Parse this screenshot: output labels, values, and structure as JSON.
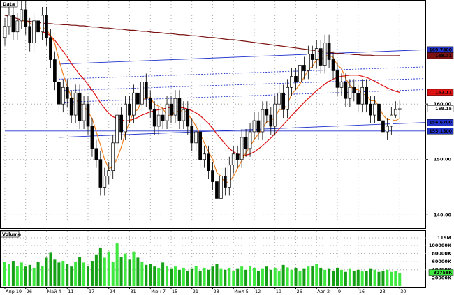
{
  "chart_data": {
    "type": "candlestick",
    "title": "Data",
    "volume_title": "Volume",
    "categories": [
      "Апр 19",
      null,
      null,
      null,
      null,
      "26",
      null,
      null,
      null,
      null,
      "Май 4",
      null,
      null,
      null,
      null,
      "11",
      null,
      null,
      null,
      null,
      "17",
      null,
      null,
      null,
      null,
      "24",
      null,
      null,
      null,
      null,
      "31",
      null,
      null,
      null,
      null,
      "Июн 7",
      null,
      null,
      null,
      null,
      "15",
      null,
      null,
      null,
      null,
      "21",
      null,
      null,
      null,
      null,
      "28",
      null,
      null,
      null,
      null,
      "Июл 5",
      null,
      null,
      null,
      null,
      "12",
      null,
      null,
      null,
      null,
      "19",
      null,
      null,
      null,
      null,
      "26",
      null,
      null,
      null,
      null,
      "Авг 2",
      null,
      null,
      null,
      null,
      "9",
      null,
      null,
      null,
      null,
      "16",
      null,
      null,
      null,
      null,
      "23",
      null,
      null,
      null,
      null,
      "30"
    ],
    "open": [
      172,
      174,
      176,
      173,
      175,
      177,
      174,
      171,
      175,
      173,
      176,
      172,
      168,
      164,
      160,
      163,
      161,
      158,
      162,
      157,
      160,
      156,
      152,
      150,
      145,
      147,
      148,
      153,
      158,
      155,
      160,
      158,
      162,
      160,
      164,
      161,
      159,
      156,
      158,
      157,
      160,
      158,
      161,
      157,
      159,
      156,
      153,
      155,
      150,
      151,
      148,
      146,
      143,
      147,
      145,
      149,
      151,
      150,
      154,
      152,
      155,
      157,
      155,
      159,
      158,
      156,
      160,
      162,
      159,
      163,
      165,
      164,
      167,
      166,
      169,
      168,
      170,
      167,
      171,
      168,
      166,
      163,
      164,
      161,
      163,
      162,
      160,
      163,
      160,
      158,
      160,
      157,
      155,
      156,
      158,
      159
    ],
    "high": [
      175.5,
      177.5,
      177.5,
      176.5,
      178.5,
      178.5,
      175.5,
      176.5,
      176.5,
      177.5,
      177.5,
      173.5,
      169.5,
      165.5,
      164.5,
      164.5,
      162.5,
      163.5,
      163.5,
      161.5,
      161.5,
      157.5,
      153.5,
      151.5,
      148.5,
      149.5,
      154.5,
      159.5,
      159.5,
      161.5,
      161.5,
      163.5,
      163.5,
      165.5,
      165.5,
      162.5,
      160.5,
      159.5,
      159.5,
      161.5,
      161.5,
      162.5,
      162.5,
      160.5,
      160.5,
      157.5,
      156.5,
      156.5,
      152.5,
      152.5,
      149.5,
      147.5,
      148.5,
      148.5,
      150.5,
      152.5,
      152.5,
      155.5,
      155.5,
      156.5,
      158.5,
      158.5,
      160.5,
      160.5,
      159.5,
      161.5,
      163.5,
      163.5,
      164.5,
      166.5,
      166.5,
      168.5,
      168.5,
      170.5,
      170.5,
      171.5,
      171.5,
      172.5,
      172.5,
      169.5,
      167.5,
      165.5,
      165.5,
      164.5,
      164.5,
      163.5,
      164.5,
      164.5,
      161.5,
      161.5,
      161.5,
      158.5,
      157.5,
      159.5,
      160.5,
      160.65
    ],
    "low": [
      170.5,
      172.5,
      171.5,
      171.5,
      173.5,
      172.5,
      169.5,
      169.5,
      171.5,
      171.5,
      170.5,
      166.5,
      162.5,
      158.5,
      158.5,
      159.5,
      156.5,
      156.5,
      155.5,
      155.5,
      154.5,
      150.5,
      148.5,
      143.5,
      143.5,
      145.5,
      146.5,
      151.5,
      153.5,
      153.5,
      156.5,
      156.5,
      158.5,
      158.5,
      159.5,
      157.5,
      154.5,
      154.5,
      155.5,
      155.5,
      156.5,
      156.5,
      155.5,
      155.5,
      154.5,
      151.5,
      151.5,
      148.5,
      148.5,
      146.5,
      144.5,
      141.5,
      141.5,
      143.5,
      143.5,
      147.5,
      148.5,
      148.5,
      150.5,
      150.5,
      153.5,
      153.5,
      153.5,
      156.5,
      154.5,
      154.5,
      158.5,
      157.5,
      157.5,
      161.5,
      162.5,
      162.5,
      164.5,
      164.5,
      166.5,
      166.5,
      165.5,
      165.5,
      166.5,
      164.5,
      161.5,
      161.5,
      159.5,
      159.5,
      160.5,
      158.5,
      158.5,
      158.5,
      156.5,
      156.5,
      155.5,
      153.5,
      153.5,
      154.5,
      157.5,
      157.5
    ],
    "close": [
      174,
      176,
      173,
      175,
      177,
      174,
      171,
      175,
      173,
      176,
      172,
      168,
      164,
      160,
      163,
      161,
      158,
      162,
      157,
      160,
      156,
      152,
      150,
      145,
      147,
      148,
      153,
      158,
      155,
      160,
      158,
      162,
      160,
      164,
      161,
      159,
      156,
      158,
      157,
      160,
      158,
      161,
      157,
      159,
      156,
      153,
      155,
      150,
      151,
      148,
      146,
      143,
      147,
      145,
      149,
      151,
      150,
      154,
      152,
      155,
      157,
      155,
      159,
      158,
      156,
      160,
      162,
      159,
      163,
      165,
      164,
      167,
      166,
      169,
      168,
      170,
      167,
      171,
      168,
      166,
      163,
      164,
      161,
      163,
      162,
      160,
      163,
      160,
      158,
      160,
      157,
      155,
      156,
      158,
      159,
      159.15
    ],
    "up_color": "#ffffff",
    "down_color": "#000000",
    "ylim": [
      137.9,
      178.5
    ],
    "yticks": [
      {
        "value": 160,
        "label": "160.00"
      },
      {
        "value": 150,
        "label": "150.00"
      },
      {
        "value": 140,
        "label": "140.00"
      }
    ],
    "grid": true,
    "series": [
      {
        "color": "#7a1010",
        "values": [
          176,
          175.8,
          175.6,
          175.4,
          175.2,
          175,
          174.9,
          174.8,
          174.7,
          174.6,
          174.5,
          174.5,
          174.4,
          174.4,
          174.3,
          174.3,
          174.2,
          174.2,
          174.1,
          174.1,
          174,
          173.9,
          173.9,
          173.8,
          173.7,
          173.7,
          173.6,
          173.5,
          173.5,
          173.4,
          173.3,
          173.3,
          173.2,
          173.1,
          173.1,
          173,
          172.9,
          172.9,
          172.8,
          172.7,
          172.7,
          172.6,
          172.5,
          172.5,
          172.4,
          172.3,
          172.3,
          172.2,
          172.1,
          172,
          172,
          171.9,
          171.8,
          171.7,
          171.6,
          171.6,
          171.5,
          171.4,
          171.3,
          171.2,
          171.1,
          171,
          170.9,
          170.8,
          170.7,
          170.6,
          170.5,
          170.4,
          170.3,
          170.2,
          170.1,
          170,
          169.9,
          169.8,
          169.7,
          169.6,
          169.5,
          169.4,
          169.3,
          169.2,
          169.1,
          169.1,
          169,
          169,
          168.9,
          168.9,
          168.8,
          168.8,
          168.8,
          168.7,
          168.7,
          168.7,
          168.7,
          168.7,
          168.7,
          168.71
        ]
      },
      {
        "color": "#dd1111",
        "values": [
          null,
          null,
          null,
          null,
          null,
          null,
          null,
          null,
          null,
          173,
          172.8,
          172.3,
          171.5,
          170.5,
          169.5,
          168.5,
          167.3,
          166.3,
          165.3,
          164.5,
          163.5,
          162.5,
          161.4,
          160.2,
          159.2,
          158.3,
          157.7,
          157.4,
          157.1,
          157,
          157,
          157.3,
          157.6,
          158,
          158.3,
          158.6,
          158.8,
          159,
          159.1,
          159.3,
          159.4,
          159.5,
          159.4,
          159.3,
          159.1,
          158.8,
          158.4,
          157.9,
          157.2,
          156.5,
          155.6,
          154.6,
          153.7,
          152.8,
          152,
          151.4,
          151,
          150.8,
          150.8,
          151,
          151.4,
          151.9,
          152.5,
          153.2,
          153.9,
          154.7,
          155.5,
          156.3,
          157.1,
          157.9,
          158.7,
          159.5,
          160.3,
          161,
          161.7,
          162.4,
          163,
          163.6,
          164.1,
          164.5,
          164.8,
          165,
          165.1,
          165.2,
          165.2,
          165.2,
          165,
          164.8,
          164.5,
          164.1,
          163.7,
          163.3,
          162.9,
          162.6,
          162.3,
          162.11
        ]
      },
      {
        "color": "#f08020",
        "values": [
          null,
          null,
          null,
          null,
          175,
          175,
          174.6,
          174.2,
          173.6,
          173.8,
          173.4,
          172.4,
          171,
          168,
          165.4,
          163.2,
          161.2,
          160.8,
          160.2,
          159.6,
          158.6,
          157.4,
          155,
          152.6,
          150,
          148.4,
          148.6,
          150.2,
          152.2,
          154.8,
          156.8,
          158.6,
          159,
          160.8,
          161,
          161.2,
          160,
          159.6,
          159.2,
          158,
          157.8,
          158.8,
          158.6,
          159,
          158.2,
          157.2,
          156,
          154.6,
          153,
          151.4,
          150,
          147.6,
          147,
          145.8,
          146,
          147,
          148.4,
          149.8,
          151.2,
          152.4,
          153.6,
          154.6,
          155.6,
          156.8,
          157,
          157.6,
          159,
          159,
          160,
          161.8,
          162.6,
          163.6,
          164.8,
          166.2,
          166.8,
          168,
          168,
          168.6,
          168.8,
          168.4,
          167,
          166.4,
          164.6,
          163.4,
          162.6,
          162.6,
          161.8,
          161.6,
          160.6,
          160.6,
          159.6,
          158,
          157.2,
          157.2,
          157,
          157.4
        ]
      }
    ],
    "trend_lines": [
      {
        "x": [
          13,
          101
        ],
        "values": [
          167.2,
          169.78
        ],
        "color": "#2233cc",
        "dashed": false
      },
      {
        "x": [
          13,
          101
        ],
        "values": [
          154,
          156.67
        ],
        "color": "#2233cc",
        "dashed": false
      },
      {
        "x": [
          0,
          101
        ],
        "values": [
          155.15,
          155.15
        ],
        "color": "#2233cc",
        "dashed": false
      },
      {
        "x": [
          13,
          101
        ],
        "values": [
          164.5,
          166.7
        ],
        "color": "#2233cc",
        "dashed": true
      },
      {
        "x": [
          13,
          101
        ],
        "values": [
          162.4,
          164.6
        ],
        "color": "#2233cc",
        "dashed": true
      },
      {
        "x": [
          13,
          101
        ],
        "values": [
          160.3,
          162.6
        ],
        "color": "#2233cc",
        "dashed": true
      }
    ],
    "price_tags": [
      {
        "value": 169.78,
        "label": "169.7800",
        "color": "#2233cc",
        "text_color": "#ffffff"
      },
      {
        "value": 168.71,
        "label": "168.71",
        "color": "#7a1010",
        "text_color": "#ffffff"
      },
      {
        "value": 162.11,
        "label": "162.11",
        "color": "#dd1111",
        "text_color": "#ffffff"
      },
      {
        "value": 159.15,
        "label": "159.15",
        "color": "#ffffff",
        "text_color": "#000000"
      },
      {
        "value": 156.67,
        "label": "156.6700",
        "color": "#2233cc",
        "text_color": "#ffffff"
      },
      {
        "value": 155.15,
        "label": "155.1500",
        "color": "#2233cc",
        "text_color": "#ffffff"
      }
    ],
    "volume": {
      "values": [
        60000,
        55000,
        62000,
        50000,
        58000,
        48000,
        52000,
        45000,
        60000,
        50000,
        70000,
        82000,
        65000,
        58000,
        62000,
        55000,
        48000,
        60000,
        72000,
        58000,
        50000,
        62000,
        78000,
        95000,
        70000,
        85000,
        60000,
        105000,
        72000,
        80000,
        65000,
        85000,
        70000,
        60000,
        52000,
        55000,
        48000,
        45000,
        58000,
        50000,
        42000,
        48000,
        40000,
        45000,
        38000,
        42000,
        50000,
        38000,
        45000,
        40000,
        48000,
        55000,
        42000,
        40000,
        45000,
        38000,
        42000,
        48000,
        40000,
        50000,
        45000,
        38000,
        42000,
        48000,
        40000,
        45000,
        38000,
        52000,
        46000,
        40000,
        45000,
        38000,
        42000,
        48000,
        50000,
        55000,
        45000,
        40000,
        42000,
        38000,
        45000,
        40000,
        35000,
        42000,
        38000,
        40000,
        36000,
        38000,
        42000,
        40000,
        35000,
        38000,
        40000,
        35000,
        38000,
        32758
      ],
      "up_color": "#3ee83e",
      "down_color": "#16a016",
      "ylim": [
        0,
        119000
      ],
      "yticks": [
        {
          "value": 119000,
          "label": "119M"
        },
        {
          "value": 100000,
          "label": "100000K"
        },
        {
          "value": 80000,
          "label": "80000K"
        },
        {
          "value": 60000,
          "label": "60000K"
        },
        {
          "value": 40000,
          "label": "40000K"
        },
        {
          "value": 20000,
          "label": "20000K"
        }
      ],
      "tag": {
        "value": 32758,
        "label": "32758K",
        "color": "#3ee83e"
      }
    }
  }
}
